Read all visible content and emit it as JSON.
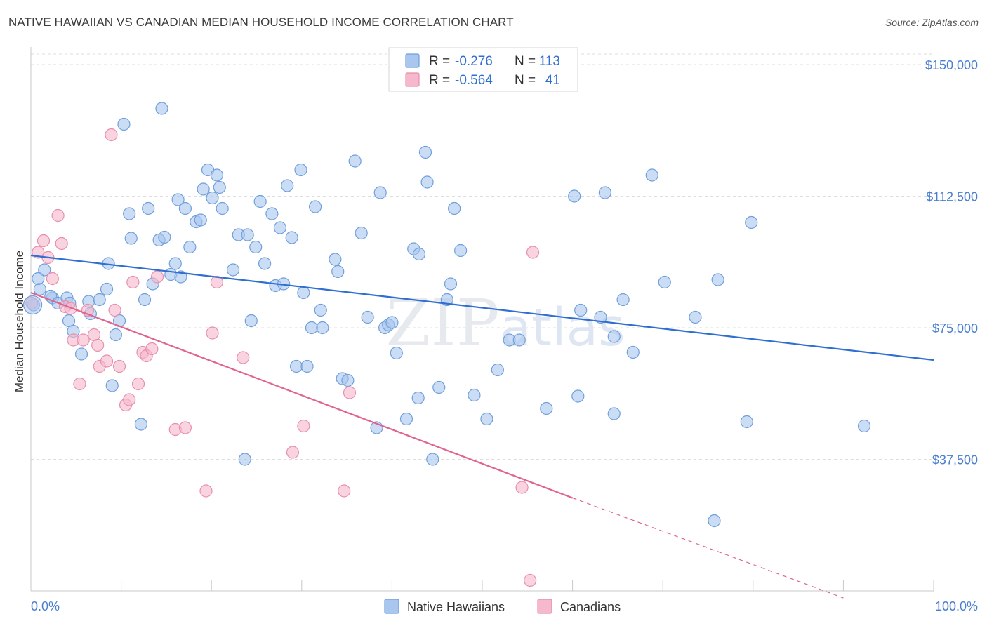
{
  "title": "NATIVE HAWAIIAN VS CANADIAN MEDIAN HOUSEHOLD INCOME CORRELATION CHART",
  "source": "Source: ZipAtlas.com",
  "watermark": "ZIPatlas",
  "colors": {
    "blue_fill": "#a9c6ef",
    "blue_stroke": "#6f9fdc",
    "blue_line": "#2f6fd1",
    "pink_fill": "#f5b8cc",
    "pink_stroke": "#e88fab",
    "pink_line": "#e0648f",
    "tick_text": "#4a7fd0",
    "grid": "#dddddd"
  },
  "legend": {
    "r_label": "R =",
    "n_label": "N =",
    "rows": [
      {
        "r": "-0.276",
        "n": "113",
        "color": "blue"
      },
      {
        "r": "-0.564",
        "n": "41",
        "color": "pink"
      }
    ]
  },
  "bottom_legend": [
    "Native Hawaiians",
    "Canadians"
  ],
  "chart_data": {
    "type": "scatter",
    "xlabel": "",
    "ylabel": "Median Household Income",
    "x_tick_labels": [
      "0.0%",
      "100.0%"
    ],
    "y_tick_labels": [
      "$37,500",
      "$75,000",
      "$112,500",
      "$150,000"
    ],
    "y_ticks": [
      37500,
      75000,
      112500,
      150000
    ],
    "xlim": [
      0,
      100
    ],
    "ylim": [
      0,
      155000
    ],
    "series": [
      {
        "name": "Native Hawaiians",
        "color": "blue",
        "trend": {
          "x": [
            0,
            100
          ],
          "y": [
            95600,
            65800
          ]
        },
        "points": [
          [
            0.3,
            81500
          ],
          [
            1.0,
            86000
          ],
          [
            1.5,
            91500
          ],
          [
            0.8,
            89000
          ],
          [
            2.4,
            83500
          ],
          [
            2.2,
            84000
          ],
          [
            3.0,
            82000
          ],
          [
            4.0,
            83500
          ],
          [
            4.3,
            82000
          ],
          [
            4.2,
            77000
          ],
          [
            4.7,
            74000
          ],
          [
            5.6,
            67500
          ],
          [
            6.4,
            82500
          ],
          [
            6.6,
            79000
          ],
          [
            7.6,
            83000
          ],
          [
            8.4,
            86000
          ],
          [
            8.6,
            93300
          ],
          [
            9.0,
            58500
          ],
          [
            9.4,
            73000
          ],
          [
            9.8,
            77000
          ],
          [
            10.3,
            133000
          ],
          [
            10.9,
            107500
          ],
          [
            11.1,
            100500
          ],
          [
            12.2,
            47500
          ],
          [
            12.6,
            83000
          ],
          [
            13.0,
            109000
          ],
          [
            13.5,
            87500
          ],
          [
            14.2,
            100000
          ],
          [
            14.5,
            137500
          ],
          [
            14.8,
            100800
          ],
          [
            15.5,
            90200
          ],
          [
            16.0,
            93300
          ],
          [
            16.3,
            111500
          ],
          [
            16.6,
            89500
          ],
          [
            17.1,
            109000
          ],
          [
            17.6,
            98000
          ],
          [
            18.3,
            105200
          ],
          [
            18.8,
            105700
          ],
          [
            19.1,
            114500
          ],
          [
            19.6,
            120000
          ],
          [
            20.1,
            112000
          ],
          [
            20.6,
            118500
          ],
          [
            20.9,
            115000
          ],
          [
            21.2,
            109000
          ],
          [
            22.4,
            91500
          ],
          [
            23.0,
            101500
          ],
          [
            23.7,
            37500
          ],
          [
            24.0,
            101500
          ],
          [
            24.4,
            77000
          ],
          [
            24.9,
            98000
          ],
          [
            25.4,
            111000
          ],
          [
            25.9,
            93300
          ],
          [
            26.7,
            107500
          ],
          [
            27.1,
            87000
          ],
          [
            27.6,
            103500
          ],
          [
            28.0,
            87500
          ],
          [
            28.4,
            115500
          ],
          [
            28.9,
            100700
          ],
          [
            29.4,
            64000
          ],
          [
            29.9,
            120000
          ],
          [
            30.2,
            85000
          ],
          [
            30.6,
            64000
          ],
          [
            31.1,
            75000
          ],
          [
            31.5,
            109500
          ],
          [
            32.1,
            80000
          ],
          [
            32.3,
            75000
          ],
          [
            33.7,
            94500
          ],
          [
            34.0,
            91000
          ],
          [
            34.5,
            60500
          ],
          [
            35.1,
            60000
          ],
          [
            35.9,
            122500
          ],
          [
            36.6,
            102000
          ],
          [
            37.3,
            78000
          ],
          [
            38.3,
            46500
          ],
          [
            38.7,
            113500
          ],
          [
            39.2,
            75000
          ],
          [
            39.6,
            75800
          ],
          [
            40.0,
            76500
          ],
          [
            40.5,
            67800
          ],
          [
            41.6,
            49000
          ],
          [
            42.4,
            97500
          ],
          [
            42.9,
            55000
          ],
          [
            43.0,
            96000
          ],
          [
            43.7,
            125000
          ],
          [
            43.9,
            116500
          ],
          [
            44.5,
            37500
          ],
          [
            45.2,
            58000
          ],
          [
            46.1,
            83000
          ],
          [
            46.5,
            87500
          ],
          [
            46.9,
            109000
          ],
          [
            47.6,
            97000
          ],
          [
            49.1,
            55800
          ],
          [
            50.5,
            49000
          ],
          [
            51.7,
            63000
          ],
          [
            53.0,
            71500
          ],
          [
            54.1,
            71500
          ],
          [
            57.1,
            52000
          ],
          [
            60.2,
            112500
          ],
          [
            60.6,
            55500
          ],
          [
            60.9,
            80000
          ],
          [
            63.1,
            78000
          ],
          [
            63.6,
            113500
          ],
          [
            64.6,
            72500
          ],
          [
            64.6,
            50500
          ],
          [
            65.6,
            83000
          ],
          [
            66.7,
            68000
          ],
          [
            68.8,
            118500
          ],
          [
            70.2,
            88000
          ],
          [
            73.6,
            78000
          ],
          [
            75.7,
            20000
          ],
          [
            76.1,
            88700
          ],
          [
            79.3,
            48200
          ],
          [
            79.8,
            105000
          ],
          [
            92.3,
            47000
          ]
        ]
      },
      {
        "name": "Canadians",
        "color": "pink",
        "trend": {
          "x": [
            0,
            60
          ],
          "y": [
            85000,
            26500
          ]
        },
        "trend_extension": {
          "x": [
            60,
            90
          ],
          "y": [
            26500,
            -2000
          ]
        },
        "points": [
          [
            0.1,
            82000
          ],
          [
            0.8,
            96500
          ],
          [
            1.4,
            99800
          ],
          [
            1.9,
            95000
          ],
          [
            2.4,
            89000
          ],
          [
            3.0,
            107000
          ],
          [
            3.4,
            99000
          ],
          [
            3.8,
            81000
          ],
          [
            4.4,
            80500
          ],
          [
            4.7,
            71500
          ],
          [
            5.4,
            59000
          ],
          [
            5.8,
            71500
          ],
          [
            6.3,
            80000
          ],
          [
            7.0,
            73000
          ],
          [
            7.4,
            70000
          ],
          [
            7.6,
            64000
          ],
          [
            8.4,
            65500
          ],
          [
            8.9,
            130000
          ],
          [
            9.3,
            80000
          ],
          [
            9.8,
            64000
          ],
          [
            10.5,
            53000
          ],
          [
            10.9,
            54500
          ],
          [
            11.3,
            88000
          ],
          [
            11.9,
            59000
          ],
          [
            12.4,
            68000
          ],
          [
            12.8,
            67000
          ],
          [
            13.4,
            69000
          ],
          [
            14.0,
            89500
          ],
          [
            16.0,
            46000
          ],
          [
            17.1,
            46500
          ],
          [
            19.4,
            28500
          ],
          [
            20.1,
            73500
          ],
          [
            20.6,
            88000
          ],
          [
            23.5,
            66500
          ],
          [
            29.0,
            39500
          ],
          [
            30.2,
            47000
          ],
          [
            34.7,
            28500
          ],
          [
            35.3,
            56500
          ],
          [
            54.4,
            29500
          ],
          [
            55.6,
            96500
          ],
          [
            55.3,
            3000
          ]
        ]
      }
    ],
    "grid": true,
    "legend_position": "top-center"
  }
}
